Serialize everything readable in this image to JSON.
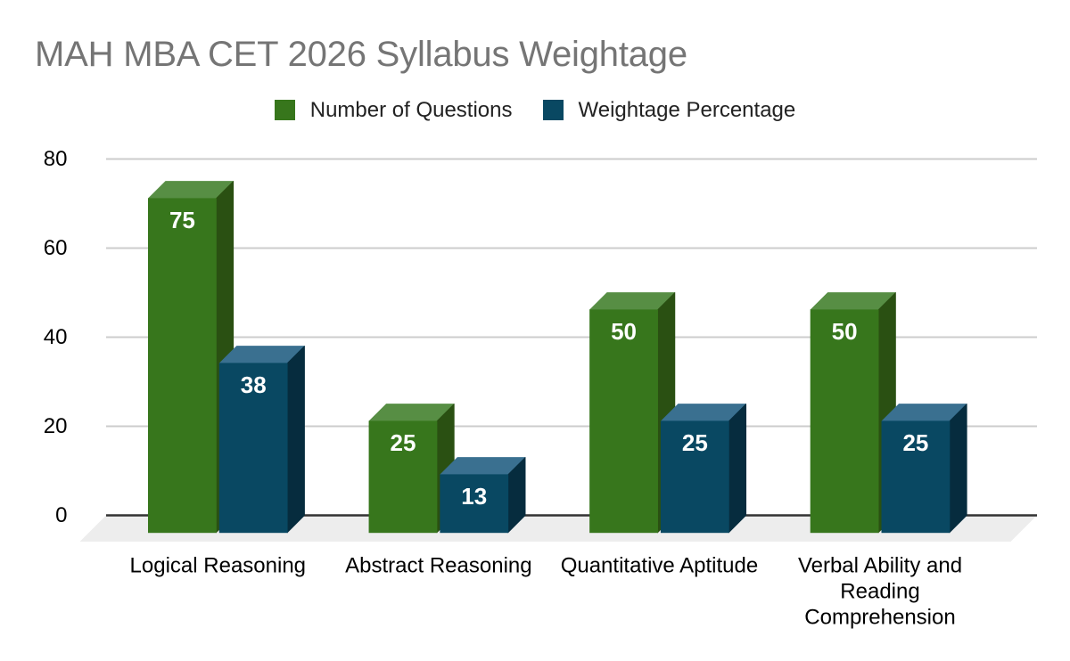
{
  "chart_data": {
    "type": "bar",
    "is3d": true,
    "title": "MAH MBA CET 2026 Syllabus Weightage",
    "title_color": "#757575",
    "background_color": "#ffffff",
    "categories": [
      "Logical Reasoning",
      "Abstract Reasoning",
      "Quantitative Aptitude",
      "Verbal Ability and\nReading\nComprehension"
    ],
    "series": [
      {
        "name": "Number of Questions",
        "color": "#37761c",
        "color_top": "#578e44",
        "color_side": "#2a5012",
        "values": [
          75,
          25,
          50,
          50
        ]
      },
      {
        "name": "Weightage Percentage",
        "color": "#094862",
        "color_top": "#3a7090",
        "color_side": "#062c3e",
        "values": [
          38,
          13,
          25,
          25
        ]
      }
    ],
    "value_labels_shown": true,
    "value_label_color": "#ffffff",
    "xlabel": "",
    "ylabel": "",
    "ylim": [
      0,
      80
    ],
    "yticks": [
      0,
      20,
      40,
      60,
      80
    ],
    "grid": true,
    "gridline_color": "#cccccc",
    "baseline_color": "#333333",
    "floor_color": "#ededed",
    "axis_text_color": "#000000",
    "legend_position": "top"
  }
}
